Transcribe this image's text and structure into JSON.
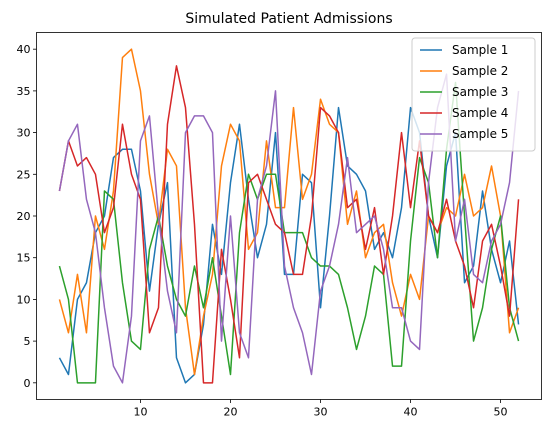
{
  "chart_data": {
    "type": "line",
    "title": "Simulated Patient Admissions",
    "xlabel": "",
    "ylabel": "",
    "xlim": [
      -1.55,
      54.55
    ],
    "ylim": [
      -2,
      42
    ],
    "xticks": [
      10,
      20,
      30,
      40,
      50
    ],
    "yticks": [
      0,
      5,
      10,
      15,
      20,
      25,
      30,
      35,
      40
    ],
    "grid": false,
    "legend_position": "top-right",
    "x": [
      1,
      2,
      3,
      4,
      5,
      6,
      7,
      8,
      9,
      10,
      11,
      12,
      13,
      14,
      15,
      16,
      17,
      18,
      19,
      20,
      21,
      22,
      23,
      24,
      25,
      26,
      27,
      28,
      29,
      30,
      31,
      32,
      33,
      34,
      35,
      36,
      37,
      38,
      39,
      40,
      41,
      42,
      43,
      44,
      45,
      46,
      47,
      48,
      49,
      50,
      51,
      52
    ],
    "series": [
      {
        "name": "Sample 1",
        "color": "#1f77b4",
        "values": [
          3,
          1,
          10,
          12,
          18,
          20,
          27,
          28,
          28,
          23,
          11,
          19,
          24,
          3,
          0,
          1,
          7,
          19,
          13,
          24,
          31,
          22,
          15,
          19,
          30,
          13,
          13,
          25,
          24,
          9,
          20,
          33,
          26,
          25,
          23,
          16,
          18,
          15,
          21,
          33,
          30,
          20,
          15,
          26,
          30,
          12,
          14,
          23,
          16,
          12,
          17,
          7
        ]
      },
      {
        "name": "Sample 2",
        "color": "#ff7f0e",
        "values": [
          10,
          6,
          13,
          6,
          20,
          16,
          23,
          39,
          40,
          35,
          25,
          19,
          28,
          26,
          9,
          1,
          8,
          13,
          26,
          31,
          29,
          16,
          18,
          29,
          21,
          21,
          33,
          22,
          25,
          34,
          31,
          30,
          19,
          23,
          15,
          18,
          19,
          12,
          8,
          13,
          10,
          20,
          18,
          21,
          20,
          25,
          20,
          21,
          26,
          20,
          6,
          9
        ]
      },
      {
        "name": "Sample 3",
        "color": "#2ca02c",
        "values": [
          14,
          10,
          0,
          0,
          0,
          23,
          22,
          12,
          5,
          4,
          16,
          20,
          14,
          10,
          8,
          14,
          9,
          15,
          8,
          1,
          18,
          25,
          22,
          25,
          25,
          18,
          18,
          18,
          15,
          14,
          14,
          13,
          9,
          4,
          8,
          14,
          13,
          2,
          2,
          17,
          27,
          24,
          15,
          28,
          36,
          20,
          5,
          9,
          16,
          20,
          9,
          5
        ]
      },
      {
        "name": "Sample 4",
        "color": "#d62728",
        "values": [
          23,
          29,
          26,
          27,
          25,
          18,
          21,
          31,
          25,
          22,
          6,
          9,
          31,
          38,
          33,
          19,
          0,
          0,
          16,
          10,
          3,
          24,
          25,
          22,
          19,
          18,
          13,
          13,
          20,
          33,
          32,
          30,
          21,
          22,
          16,
          21,
          13,
          20,
          30,
          21,
          29,
          20,
          18,
          22,
          17,
          14,
          9,
          17,
          19,
          14,
          8,
          22
        ]
      },
      {
        "name": "Sample 5",
        "color": "#9467bd",
        "values": [
          23,
          29,
          31,
          22,
          18,
          9,
          2,
          0,
          8,
          29,
          32,
          20,
          11,
          6,
          30,
          32,
          32,
          30,
          5,
          20,
          6,
          3,
          22,
          26,
          35,
          14,
          9,
          6,
          1,
          11,
          14,
          19,
          27,
          18,
          19,
          20,
          16,
          9,
          9,
          5,
          4,
          24,
          33,
          37,
          17,
          22,
          13,
          12,
          17,
          19,
          24,
          35
        ]
      }
    ]
  }
}
